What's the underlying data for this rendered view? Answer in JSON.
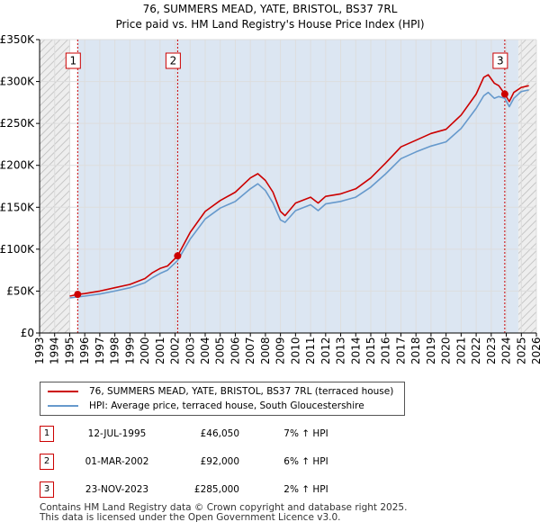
{
  "title": {
    "line1": "76, SUMMERS MEAD, YATE, BRISTOL, BS37 7RL",
    "line2": "Price paid vs. HM Land Registry's House Price Index (HPI)"
  },
  "colors": {
    "price": "#cc0000",
    "hpi": "#6699cc",
    "shade": "#dce6f2",
    "grid": "#dddddd"
  },
  "chart_data": {
    "type": "line",
    "title": "Price paid vs. HM Land Registry's House Price Index (HPI)",
    "xlim": [
      1993,
      2026
    ],
    "ylim": [
      0,
      350000
    ],
    "x_ticks": [
      1993,
      1994,
      1995,
      1996,
      1997,
      1998,
      1999,
      2000,
      2001,
      2002,
      2003,
      2004,
      2005,
      2006,
      2007,
      2008,
      2009,
      2010,
      2011,
      2012,
      2013,
      2014,
      2015,
      2016,
      2017,
      2018,
      2019,
      2020,
      2021,
      2022,
      2023,
      2024,
      2025,
      2026
    ],
    "y_ticks": [
      {
        "value": 0,
        "label": "£0"
      },
      {
        "value": 50000,
        "label": "£50K"
      },
      {
        "value": 100000,
        "label": "£100K"
      },
      {
        "value": 150000,
        "label": "£150K"
      },
      {
        "value": 200000,
        "label": "£200K"
      },
      {
        "value": 250000,
        "label": "£250K"
      },
      {
        "value": 300000,
        "label": "£300K"
      },
      {
        "value": 350000,
        "label": "£350K"
      }
    ],
    "hatched_ranges": [
      [
        1993,
        1995.0
      ],
      [
        2024.8,
        2026
      ]
    ],
    "series": [
      {
        "name": "76, SUMMERS MEAD, YATE, BRISTOL, BS37 7RL (terraced house)",
        "color": "#cc0000",
        "x": [
          1995.0,
          1995.53,
          1996,
          1997,
          1998,
          1999,
          2000,
          2000.5,
          2001,
          2001.5,
          2002.17,
          2003,
          2004,
          2005,
          2006,
          2007,
          2007.5,
          2008,
          2008.5,
          2009,
          2009.3,
          2010,
          2011,
          2011.5,
          2012,
          2013,
          2014,
          2015,
          2016,
          2017,
          2018,
          2019,
          2020,
          2021,
          2022,
          2022.5,
          2022.8,
          2023.2,
          2023.5,
          2023.9,
          2024.2,
          2024.5,
          2025,
          2025.5
        ],
        "y": [
          44000,
          46050,
          47000,
          50000,
          54000,
          58000,
          65000,
          72000,
          77000,
          80000,
          92000,
          120000,
          145000,
          158000,
          168000,
          185000,
          190000,
          182000,
          168000,
          145000,
          140000,
          155000,
          162000,
          155000,
          163000,
          166000,
          172000,
          185000,
          203000,
          222000,
          230000,
          238000,
          243000,
          260000,
          285000,
          305000,
          308000,
          298000,
          295000,
          285000,
          276000,
          287000,
          293000,
          295000
        ]
      },
      {
        "name": "HPI: Average price, terraced house, South Gloucestershire",
        "color": "#6699cc",
        "x": [
          1995.0,
          1995.53,
          1996,
          1997,
          1998,
          1999,
          2000,
          2000.5,
          2001,
          2001.5,
          2002.17,
          2003,
          2004,
          2005,
          2006,
          2007,
          2007.5,
          2008,
          2008.5,
          2009,
          2009.3,
          2010,
          2011,
          2011.5,
          2012,
          2013,
          2014,
          2015,
          2016,
          2017,
          2018,
          2019,
          2020,
          2021,
          2022,
          2022.5,
          2022.8,
          2023.2,
          2023.5,
          2023.9,
          2024.2,
          2024.5,
          2025,
          2025.5
        ],
        "y": [
          42000,
          43000,
          44000,
          46500,
          50000,
          54000,
          60000,
          66000,
          71000,
          75000,
          86500,
          112000,
          136000,
          149000,
          157000,
          172000,
          178000,
          170000,
          155000,
          135000,
          132000,
          146000,
          153000,
          146000,
          154000,
          157000,
          162000,
          174000,
          190000,
          208000,
          216000,
          223000,
          228000,
          244000,
          268000,
          283000,
          287000,
          280000,
          282000,
          280000,
          270000,
          280000,
          288000,
          290000
        ]
      }
    ],
    "sales": [
      {
        "num": "1",
        "date": "12-JUL-1995",
        "price": "£46,050",
        "hpi": "7% ↑ HPI",
        "x": 1995.53,
        "y": 46050
      },
      {
        "num": "2",
        "date": "01-MAR-2002",
        "price": "£92,000",
        "hpi": "6% ↑ HPI",
        "x": 2002.17,
        "y": 92000
      },
      {
        "num": "3",
        "date": "23-NOV-2023",
        "price": "£285,000",
        "hpi": "2% ↑ HPI",
        "x": 2023.9,
        "y": 285000
      }
    ]
  },
  "legend": {
    "price_label": "76, SUMMERS MEAD, YATE, BRISTOL, BS37 7RL (terraced house)",
    "hpi_label": "HPI: Average price, terraced house, South Gloucestershire"
  },
  "footer": {
    "line1": "Contains HM Land Registry data © Crown copyright and database right 2025.",
    "line2": "This data is licensed under the Open Government Licence v3.0."
  }
}
